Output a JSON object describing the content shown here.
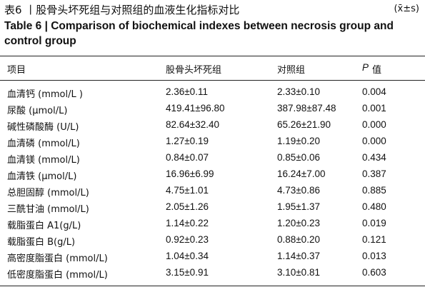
{
  "header": {
    "title": "表6 丨股骨头坏死组与对照组的血液生化指标对比",
    "stat_note": "(x̄±s)",
    "english_title": "Table 6  |  Comparison of biochemical indexes between necrosis group and control group"
  },
  "table": {
    "columns": [
      "项目",
      "股骨头坏死组",
      "对照组"
    ],
    "p_column": {
      "symbol": "P",
      "text": "值"
    },
    "rows": [
      [
        "血清钙 (mmol/L )",
        "2.36±0.11",
        "2.33±0.10",
        "0.004"
      ],
      [
        "尿酸 (μmol/L)",
        "419.41±96.80",
        "387.98±87.48",
        "0.001"
      ],
      [
        "碱性磷酸酶 (U/L)",
        "82.64±32.40",
        "65.26±21.90",
        "0.000"
      ],
      [
        "血清磷 (mmol/L)",
        "1.27±0.19",
        "1.19±0.20",
        "0.000"
      ],
      [
        "血清镁 (mmol/L)",
        "0.84±0.07",
        "0.85±0.06",
        "0.434"
      ],
      [
        "血清铁 (μmol/L)",
        "16.96±6.99",
        "16.24±7.00",
        "0.387"
      ],
      [
        "总胆固醇 (mmol/L)",
        "4.75±1.01",
        "4.73±0.86",
        "0.885"
      ],
      [
        "三酰甘油 (mmol/L)",
        "2.05±1.26",
        "1.95±1.37",
        "0.480"
      ],
      [
        "载脂蛋白 A1(g/L)",
        "1.14±0.22",
        "1.20±0.23",
        "0.019"
      ],
      [
        "载脂蛋白 B(g/L)",
        "0.92±0.23",
        "0.88±0.20",
        "0.121"
      ],
      [
        "高密度脂蛋白 (mmol/L)",
        "1.04±0.34",
        "1.14±0.37",
        "0.013"
      ],
      [
        "低密度脂蛋白 (mmol/L)",
        "3.15±0.91",
        "3.10±0.81",
        "0.603"
      ]
    ]
  }
}
